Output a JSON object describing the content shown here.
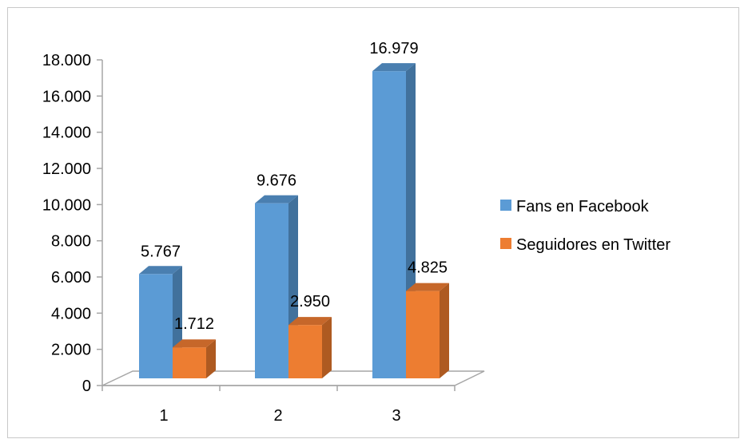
{
  "chart_data": {
    "type": "bar",
    "style": "3d-clustered-column",
    "categories": [
      "1",
      "2",
      "3"
    ],
    "series": [
      {
        "name": "Fans en Facebook",
        "values": [
          5767,
          9676,
          16979
        ],
        "labels": [
          "5.767",
          "9.676",
          "16.979"
        ],
        "color": "#5b9bd5",
        "side_color": "#41719c",
        "top_color": "#4a7fb0"
      },
      {
        "name": "Seguidores en Twitter",
        "values": [
          1712,
          2950,
          4825
        ],
        "labels": [
          "1.712",
          "2.950",
          "4.825"
        ],
        "color": "#ed7d31",
        "side_color": "#ae5a21",
        "top_color": "#c6672a"
      }
    ],
    "yticks": [
      {
        "value": 0,
        "label": "0"
      },
      {
        "value": 2000,
        "label": "2.000"
      },
      {
        "value": 4000,
        "label": "4.000"
      },
      {
        "value": 6000,
        "label": "6.000"
      },
      {
        "value": 8000,
        "label": "8.000"
      },
      {
        "value": 10000,
        "label": "10.000"
      },
      {
        "value": 12000,
        "label": "12.000"
      },
      {
        "value": 14000,
        "label": "14.000"
      },
      {
        "value": 16000,
        "label": "16.000"
      },
      {
        "value": 18000,
        "label": "18.000"
      }
    ],
    "ylim": [
      0,
      18000
    ],
    "grid": false,
    "legend": "right",
    "axis_color": "#a6a6a6"
  }
}
